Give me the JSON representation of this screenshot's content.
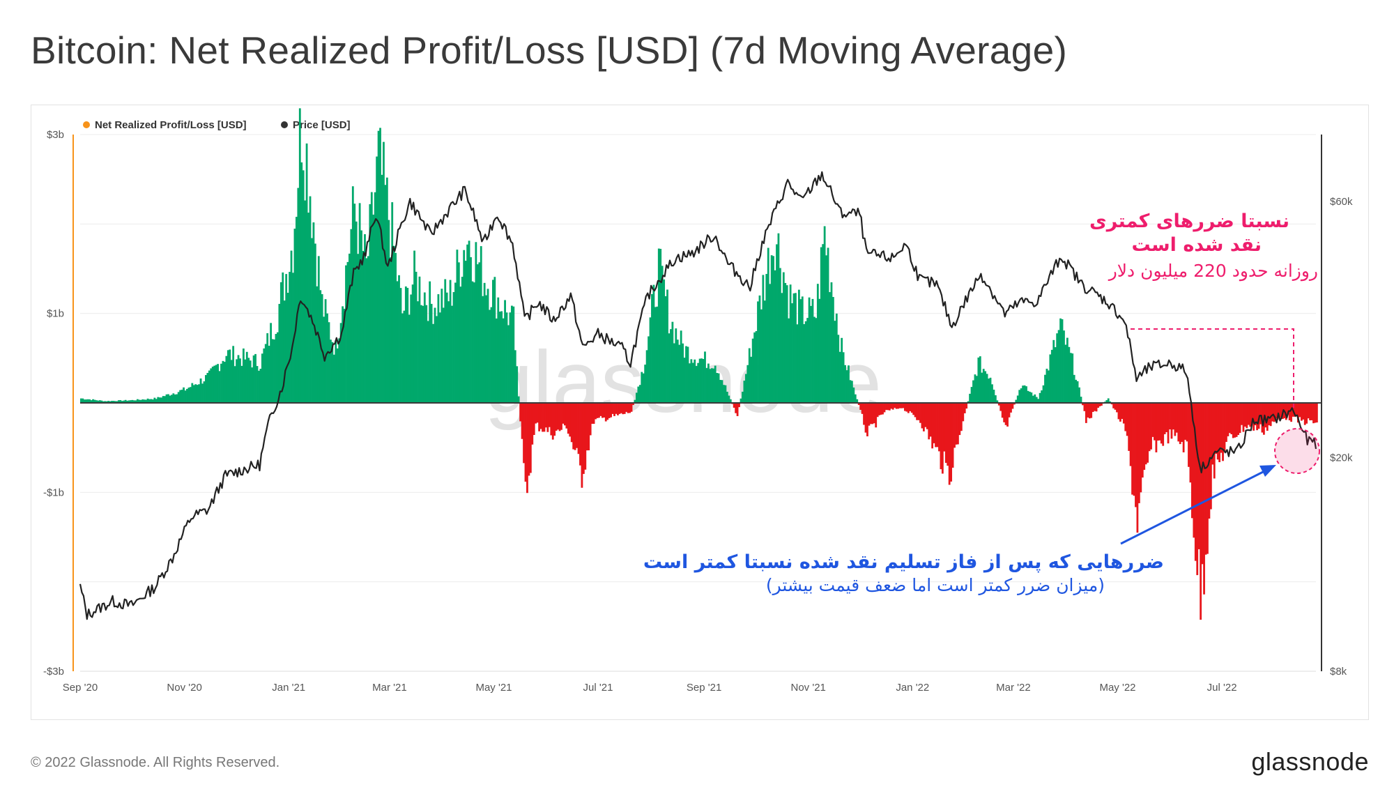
{
  "page": {
    "title": "Bitcoin: Net Realized Profit/Loss [USD] (7d Moving Average)",
    "copyright": "© 2022 Glassnode. All Rights Reserved.",
    "logo": "glassnode",
    "watermark": "glassnode"
  },
  "legend": [
    {
      "label": "Net Realized Profit/Loss [USD]",
      "color": "#f7931a"
    },
    {
      "label": "Price [USD]",
      "color": "#333333"
    }
  ],
  "annotations": {
    "top_right_line1": "نسبتا ضررهای کمتری",
    "top_right_line2": "نقد شده است",
    "top_right_line3": "روزانه حدود 220 میلیون دلار",
    "bottom_line1": "ضررهایی که پس از فاز تسلیم نقد شده نسبتا کمتر است",
    "bottom_line2": "(میزان ضرر کمتر است اما ضعف قیمت بیشتر)",
    "top_color": "#ee1d6c",
    "bottom_color": "#1f56e0"
  },
  "colors": {
    "profit": "#00a86b",
    "loss": "#e8161b",
    "price": "#222222",
    "axis_left": "#f7931a"
  },
  "chart_data": {
    "type": "bar",
    "title": "Bitcoin: Net Realized Profit/Loss [USD] (7d Moving Average)",
    "x_range": [
      "2020-09-01",
      "2022-08-25"
    ],
    "x_ticks": [
      {
        "label": "Sep '20",
        "date": "2020-09-01"
      },
      {
        "label": "Nov '20",
        "date": "2020-11-01"
      },
      {
        "label": "Jan '21",
        "date": "2021-01-01"
      },
      {
        "label": "Mar '21",
        "date": "2021-03-01"
      },
      {
        "label": "May '21",
        "date": "2021-05-01"
      },
      {
        "label": "Jul '21",
        "date": "2021-07-01"
      },
      {
        "label": "Sep '21",
        "date": "2021-09-01"
      },
      {
        "label": "Nov '21",
        "date": "2021-11-01"
      },
      {
        "label": "Jan '22",
        "date": "2022-01-01"
      },
      {
        "label": "Mar '22",
        "date": "2022-03-01"
      },
      {
        "label": "May '22",
        "date": "2022-05-01"
      },
      {
        "label": "Jul '22",
        "date": "2022-07-01"
      }
    ],
    "y_left": {
      "label": "Net Realized Profit/Loss [USD]",
      "range": [
        -3.0,
        3.0
      ],
      "unit": "billion USD",
      "ticks": [
        {
          "label": "$3b",
          "value": 3
        },
        {
          "label": "$1b",
          "value": 1
        },
        {
          "label": "-$1b",
          "value": -1
        },
        {
          "label": "-$3b",
          "value": -3
        }
      ]
    },
    "y_right": {
      "label": "Price [USD]",
      "scale": "log",
      "range": [
        8000,
        80000
      ],
      "ticks": [
        {
          "label": "$60k",
          "value": 60000
        },
        {
          "label": "$20k",
          "value": 20000
        },
        {
          "label": "$8k",
          "value": 8000
        }
      ]
    },
    "series": [
      {
        "name": "Net Realized Profit/Loss [USD]",
        "unit": "billion USD",
        "points": [
          [
            "2020-09-01",
            0.05
          ],
          [
            "2020-09-15",
            0.02
          ],
          [
            "2020-10-01",
            0.03
          ],
          [
            "2020-10-15",
            0.05
          ],
          [
            "2020-11-01",
            0.15
          ],
          [
            "2020-11-15",
            0.3
          ],
          [
            "2020-11-25",
            0.55
          ],
          [
            "2020-12-05",
            0.5
          ],
          [
            "2020-12-15",
            0.45
          ],
          [
            "2020-12-25",
            1.0
          ],
          [
            "2021-01-03",
            1.8
          ],
          [
            "2021-01-08",
            3.2
          ],
          [
            "2021-01-12",
            2.6
          ],
          [
            "2021-01-20",
            1.1
          ],
          [
            "2021-01-28",
            0.6
          ],
          [
            "2021-02-08",
            2.2
          ],
          [
            "2021-02-15",
            1.5
          ],
          [
            "2021-02-22",
            2.7
          ],
          [
            "2021-03-01",
            2.0
          ],
          [
            "2021-03-08",
            1.0
          ],
          [
            "2021-03-15",
            1.4
          ],
          [
            "2021-03-25",
            1.1
          ],
          [
            "2021-04-05",
            1.2
          ],
          [
            "2021-04-15",
            1.85
          ],
          [
            "2021-04-25",
            1.4
          ],
          [
            "2021-05-05",
            1.1
          ],
          [
            "2021-05-12",
            0.9
          ],
          [
            "2021-05-19",
            -1.05
          ],
          [
            "2021-05-25",
            -0.25
          ],
          [
            "2021-06-05",
            -0.35
          ],
          [
            "2021-06-12",
            -0.25
          ],
          [
            "2021-06-21",
            -0.8
          ],
          [
            "2021-06-28",
            -0.2
          ],
          [
            "2021-07-10",
            -0.15
          ],
          [
            "2021-07-20",
            -0.1
          ],
          [
            "2021-07-27",
            0.4
          ],
          [
            "2021-08-05",
            1.5
          ],
          [
            "2021-08-12",
            0.9
          ],
          [
            "2021-08-20",
            0.6
          ],
          [
            "2021-08-28",
            0.5
          ],
          [
            "2021-09-07",
            0.45
          ],
          [
            "2021-09-20",
            -0.15
          ],
          [
            "2021-10-05",
            1.3
          ],
          [
            "2021-10-12",
            1.9
          ],
          [
            "2021-10-20",
            1.2
          ],
          [
            "2021-10-28",
            1.0
          ],
          [
            "2021-11-05",
            1.0
          ],
          [
            "2021-11-10",
            1.9
          ],
          [
            "2021-11-20",
            0.6
          ],
          [
            "2021-11-28",
            0.1
          ],
          [
            "2021-12-05",
            -0.35
          ],
          [
            "2021-12-15",
            -0.1
          ],
          [
            "2021-12-25",
            -0.05
          ],
          [
            "2022-01-05",
            -0.2
          ],
          [
            "2022-01-12",
            -0.45
          ],
          [
            "2022-01-22",
            -0.8
          ],
          [
            "2022-01-30",
            -0.2
          ],
          [
            "2022-02-08",
            0.45
          ],
          [
            "2022-02-15",
            0.3
          ],
          [
            "2022-02-24",
            -0.3
          ],
          [
            "2022-03-05",
            0.2
          ],
          [
            "2022-03-15",
            0.05
          ],
          [
            "2022-03-28",
            0.85
          ],
          [
            "2022-04-05",
            0.4
          ],
          [
            "2022-04-12",
            -0.2
          ],
          [
            "2022-04-25",
            0.05
          ],
          [
            "2022-05-05",
            -0.3
          ],
          [
            "2022-05-12",
            -1.3
          ],
          [
            "2022-05-20",
            -0.5
          ],
          [
            "2022-06-01",
            -0.35
          ],
          [
            "2022-06-10",
            -0.5
          ],
          [
            "2022-06-18",
            -2.2
          ],
          [
            "2022-06-25",
            -0.8
          ],
          [
            "2022-07-05",
            -0.4
          ],
          [
            "2022-07-15",
            -0.25
          ],
          [
            "2022-07-25",
            -0.3
          ],
          [
            "2022-08-05",
            -0.15
          ],
          [
            "2022-08-15",
            -0.2
          ],
          [
            "2022-08-25",
            -0.22
          ]
        ]
      },
      {
        "name": "Price [USD]",
        "unit": "USD",
        "points": [
          [
            "2020-09-01",
            11500
          ],
          [
            "2020-09-05",
            10200
          ],
          [
            "2020-09-20",
            10800
          ],
          [
            "2020-10-01",
            10600
          ],
          [
            "2020-10-15",
            11500
          ],
          [
            "2020-10-25",
            13000
          ],
          [
            "2020-11-05",
            15500
          ],
          [
            "2020-11-15",
            16000
          ],
          [
            "2020-11-25",
            18500
          ],
          [
            "2020-12-05",
            19000
          ],
          [
            "2020-12-15",
            19400
          ],
          [
            "2020-12-20",
            23000
          ],
          [
            "2020-12-28",
            27000
          ],
          [
            "2021-01-03",
            32000
          ],
          [
            "2021-01-08",
            40000
          ],
          [
            "2021-01-15",
            36000
          ],
          [
            "2021-01-22",
            31000
          ],
          [
            "2021-02-01",
            34000
          ],
          [
            "2021-02-08",
            44000
          ],
          [
            "2021-02-15",
            48000
          ],
          [
            "2021-02-21",
            57000
          ],
          [
            "2021-02-28",
            45000
          ],
          [
            "2021-03-13",
            60000
          ],
          [
            "2021-03-25",
            52000
          ],
          [
            "2021-04-05",
            58000
          ],
          [
            "2021-04-14",
            63000
          ],
          [
            "2021-04-25",
            50000
          ],
          [
            "2021-05-03",
            57000
          ],
          [
            "2021-05-12",
            50000
          ],
          [
            "2021-05-19",
            36000
          ],
          [
            "2021-05-27",
            39000
          ],
          [
            "2021-06-05",
            36000
          ],
          [
            "2021-06-15",
            40000
          ],
          [
            "2021-06-22",
            32000
          ],
          [
            "2021-07-01",
            34000
          ],
          [
            "2021-07-15",
            32000
          ],
          [
            "2021-07-20",
            30000
          ],
          [
            "2021-07-30",
            40000
          ],
          [
            "2021-08-15",
            47000
          ],
          [
            "2021-08-25",
            48000
          ],
          [
            "2021-09-07",
            52000
          ],
          [
            "2021-09-15",
            46000
          ],
          [
            "2021-09-28",
            41500
          ],
          [
            "2021-10-05",
            50000
          ],
          [
            "2021-10-15",
            60000
          ],
          [
            "2021-10-20",
            65000
          ],
          [
            "2021-10-28",
            60000
          ],
          [
            "2021-11-09",
            67500
          ],
          [
            "2021-11-20",
            57000
          ],
          [
            "2021-12-01",
            57000
          ],
          [
            "2021-12-05",
            48000
          ],
          [
            "2021-12-20",
            47000
          ],
          [
            "2021-12-28",
            50000
          ],
          [
            "2022-01-05",
            43000
          ],
          [
            "2022-01-15",
            42000
          ],
          [
            "2022-01-24",
            35000
          ],
          [
            "2022-02-10",
            44000
          ],
          [
            "2022-02-24",
            37000
          ],
          [
            "2022-03-05",
            39000
          ],
          [
            "2022-03-15",
            39000
          ],
          [
            "2022-03-29",
            47500
          ],
          [
            "2022-04-10",
            42000
          ],
          [
            "2022-04-25",
            39000
          ],
          [
            "2022-05-05",
            36000
          ],
          [
            "2022-05-12",
            28000
          ],
          [
            "2022-05-20",
            29500
          ],
          [
            "2022-06-01",
            30000
          ],
          [
            "2022-06-10",
            29000
          ],
          [
            "2022-06-18",
            19000
          ],
          [
            "2022-06-28",
            20500
          ],
          [
            "2022-07-10",
            20500
          ],
          [
            "2022-07-20",
            23500
          ],
          [
            "2022-07-30",
            23500
          ],
          [
            "2022-08-12",
            24500
          ],
          [
            "2022-08-20",
            21500
          ],
          [
            "2022-08-25",
            21300
          ]
        ]
      }
    ]
  }
}
